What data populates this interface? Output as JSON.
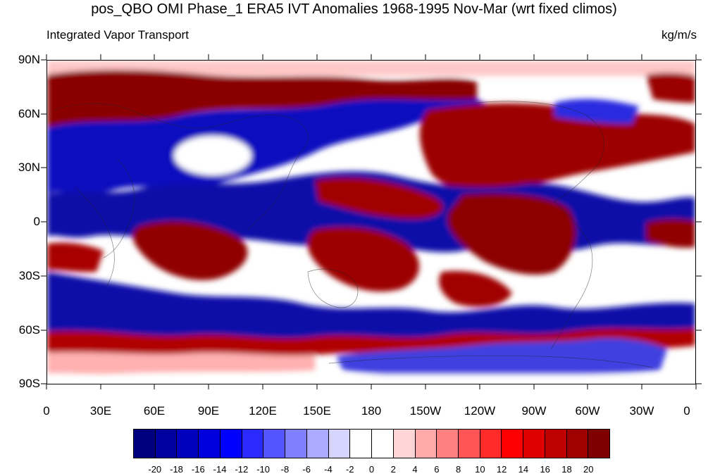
{
  "title": "pos_QBO OMI Phase_1 ERA5 IVT Anomalies 1968-1995 Nov-Mar (wrt fixed climos)",
  "subtitle_left": "Integrated Vapor Transport",
  "subtitle_right": "kg/m/s",
  "lat_labels": [
    "90N",
    "60N",
    "30N",
    "0",
    "30S",
    "60S",
    "90S"
  ],
  "lon_labels": [
    "0",
    "30E",
    "60E",
    "90E",
    "120E",
    "150E",
    "180",
    "150W",
    "120W",
    "90W",
    "60W",
    "30W",
    "0"
  ],
  "colorbar": {
    "colors": [
      "#00007f",
      "#00009f",
      "#0000bf",
      "#0000df",
      "#0000ff",
      "#2a2aff",
      "#5555ff",
      "#8080ff",
      "#aaaaff",
      "#d5d5ff",
      "#ffffff",
      "#ffffff",
      "#ffd5d5",
      "#ffaaaa",
      "#ff8080",
      "#ff5555",
      "#ff2a2a",
      "#ff0000",
      "#df0000",
      "#bf0000",
      "#9f0000",
      "#7f0000"
    ],
    "labels": [
      "-20",
      "-18",
      "-16",
      "-14",
      "-12",
      "-10",
      "-8",
      "-6",
      "-4",
      "-2",
      "0",
      "2",
      "4",
      "6",
      "8",
      "10",
      "12",
      "14",
      "16",
      "18",
      "20"
    ]
  }
}
